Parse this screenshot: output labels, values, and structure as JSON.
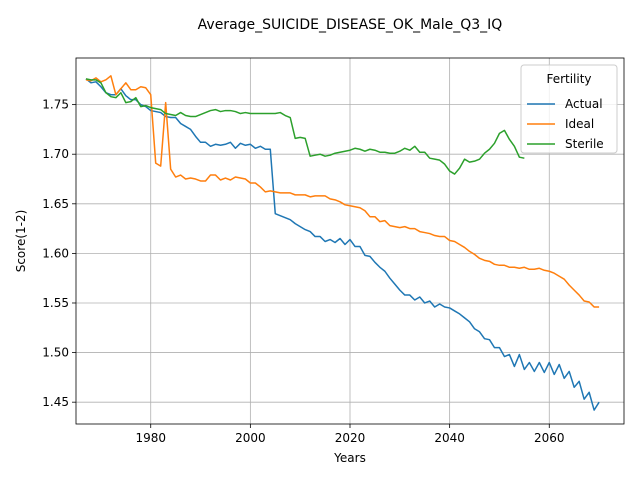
{
  "chart_data": {
    "type": "line",
    "title": "Average_SUICIDE_DISEASE_OK_Male_Q3_IQ",
    "xlabel": "Years",
    "ylabel": "Score(1-2)",
    "xlim": [
      1965,
      2075
    ],
    "ylim": [
      1.428,
      1.797
    ],
    "xticks": [
      1980,
      2000,
      2020,
      2040,
      2060
    ],
    "yticks": [
      1.45,
      1.5,
      1.55,
      1.6,
      1.65,
      1.7,
      1.75
    ],
    "grid": true,
    "legend": {
      "title": "Fertility",
      "placement": "top-right"
    },
    "series": [
      {
        "name": "Actual",
        "color": "#1f77b4",
        "x": [
          1967,
          1968,
          1969,
          1970,
          1971,
          1972,
          1973,
          1974,
          1975,
          1976,
          1977,
          1978,
          1979,
          1980,
          1981,
          1982,
          1983,
          1984,
          1985,
          1986,
          1987,
          1988,
          1989,
          1990,
          1991,
          1992,
          1993,
          1994,
          1995,
          1996,
          1997,
          1998,
          1999,
          2000,
          2001,
          2002,
          2003,
          2004,
          2005,
          2006,
          2007,
          2008,
          2009,
          2010,
          2011,
          2012,
          2013,
          2014,
          2015,
          2016,
          2017,
          2018,
          2019,
          2020,
          2021,
          2022,
          2023,
          2024,
          2025,
          2026,
          2027,
          2028,
          2029,
          2030,
          2031,
          2032,
          2033,
          2034,
          2035,
          2036,
          2037,
          2038,
          2039,
          2040,
          2041,
          2042,
          2043,
          2044,
          2045,
          2046,
          2047,
          2048,
          2049,
          2050,
          2051,
          2052,
          2053,
          2054,
          2055,
          2056,
          2057,
          2058,
          2059,
          2060,
          2061,
          2062,
          2063,
          2064,
          2065,
          2066,
          2067,
          2068,
          2069,
          2070
        ],
        "values": [
          1.776,
          1.772,
          1.773,
          1.768,
          1.762,
          1.76,
          1.76,
          1.766,
          1.759,
          1.755,
          1.755,
          1.75,
          1.748,
          1.744,
          1.743,
          1.742,
          1.738,
          1.737,
          1.737,
          1.731,
          1.728,
          1.725,
          1.718,
          1.712,
          1.712,
          1.708,
          1.71,
          1.709,
          1.71,
          1.712,
          1.706,
          1.711,
          1.709,
          1.71,
          1.706,
          1.708,
          1.705,
          1.705,
          1.64,
          1.638,
          1.636,
          1.634,
          1.63,
          1.627,
          1.624,
          1.622,
          1.617,
          1.617,
          1.612,
          1.614,
          1.611,
          1.615,
          1.609,
          1.614,
          1.607,
          1.607,
          1.598,
          1.597,
          1.591,
          1.586,
          1.582,
          1.575,
          1.569,
          1.563,
          1.558,
          1.558,
          1.553,
          1.556,
          1.55,
          1.552,
          1.546,
          1.549,
          1.546,
          1.545,
          1.542,
          1.539,
          1.535,
          1.531,
          1.524,
          1.521,
          1.514,
          1.513,
          1.505,
          1.505,
          1.496,
          1.498,
          1.486,
          1.498,
          1.483,
          1.49,
          1.481,
          1.49,
          1.48,
          1.49,
          1.478,
          1.488,
          1.474,
          1.481,
          1.465,
          1.471,
          1.453,
          1.46,
          1.442,
          1.45
        ]
      },
      {
        "name": "Ideal",
        "color": "#ff7f0e",
        "x": [
          1967,
          1968,
          1969,
          1970,
          1971,
          1972,
          1973,
          1974,
          1975,
          1976,
          1977,
          1978,
          1979,
          1980,
          1981,
          1982,
          1983,
          1984,
          1985,
          1986,
          1987,
          1988,
          1989,
          1990,
          1991,
          1992,
          1993,
          1994,
          1995,
          1996,
          1997,
          1998,
          1999,
          2000,
          2001,
          2002,
          2003,
          2004,
          2005,
          2006,
          2007,
          2008,
          2009,
          2010,
          2011,
          2012,
          2013,
          2014,
          2015,
          2016,
          2017,
          2018,
          2019,
          2020,
          2021,
          2022,
          2023,
          2024,
          2025,
          2026,
          2027,
          2028,
          2029,
          2030,
          2031,
          2032,
          2033,
          2034,
          2035,
          2036,
          2037,
          2038,
          2039,
          2040,
          2041,
          2042,
          2043,
          2044,
          2045,
          2046,
          2047,
          2048,
          2049,
          2050,
          2051,
          2052,
          2053,
          2054,
          2055,
          2056,
          2057,
          2058,
          2059,
          2060,
          2061,
          2062,
          2063,
          2064,
          2065,
          2066,
          2067,
          2068,
          2069,
          2070
        ],
        "values": [
          1.775,
          1.774,
          1.777,
          1.773,
          1.775,
          1.779,
          1.76,
          1.766,
          1.772,
          1.765,
          1.765,
          1.768,
          1.767,
          1.76,
          1.691,
          1.688,
          1.752,
          1.685,
          1.677,
          1.679,
          1.675,
          1.676,
          1.675,
          1.673,
          1.673,
          1.679,
          1.679,
          1.674,
          1.676,
          1.674,
          1.677,
          1.676,
          1.675,
          1.671,
          1.671,
          1.667,
          1.662,
          1.663,
          1.662,
          1.661,
          1.661,
          1.661,
          1.659,
          1.659,
          1.659,
          1.657,
          1.658,
          1.658,
          1.658,
          1.655,
          1.654,
          1.652,
          1.649,
          1.648,
          1.647,
          1.646,
          1.643,
          1.637,
          1.637,
          1.632,
          1.633,
          1.628,
          1.627,
          1.626,
          1.627,
          1.625,
          1.625,
          1.622,
          1.621,
          1.62,
          1.618,
          1.617,
          1.617,
          1.613,
          1.612,
          1.609,
          1.606,
          1.602,
          1.599,
          1.595,
          1.593,
          1.592,
          1.589,
          1.588,
          1.588,
          1.586,
          1.586,
          1.585,
          1.586,
          1.584,
          1.584,
          1.585,
          1.583,
          1.582,
          1.58,
          1.577,
          1.574,
          1.568,
          1.563,
          1.558,
          1.552,
          1.551,
          1.546,
          1.546
        ]
      },
      {
        "name": "Sterile",
        "color": "#2ca02c",
        "x": [
          1967,
          1968,
          1969,
          1970,
          1971,
          1972,
          1973,
          1974,
          1975,
          1976,
          1977,
          1978,
          1979,
          1980,
          1981,
          1982,
          1983,
          1984,
          1985,
          1986,
          1987,
          1988,
          1989,
          1990,
          1991,
          1992,
          1993,
          1994,
          1995,
          1996,
          1997,
          1998,
          1999,
          2000,
          2001,
          2002,
          2003,
          2004,
          2005,
          2006,
          2007,
          2008,
          2009,
          2010,
          2011,
          2012,
          2013,
          2014,
          2015,
          2016,
          2017,
          2018,
          2019,
          2020,
          2021,
          2022,
          2023,
          2024,
          2025,
          2026,
          2027,
          2028,
          2029,
          2030,
          2031,
          2032,
          2033,
          2034,
          2035,
          2036,
          2037,
          2038,
          2039,
          2040,
          2041,
          2042,
          2043,
          2044,
          2045,
          2046,
          2047,
          2048,
          2049,
          2050,
          2051,
          2052,
          2053,
          2054,
          2055
        ],
        "values": [
          1.776,
          1.775,
          1.775,
          1.772,
          1.762,
          1.758,
          1.757,
          1.762,
          1.752,
          1.753,
          1.757,
          1.748,
          1.749,
          1.747,
          1.746,
          1.745,
          1.741,
          1.74,
          1.739,
          1.742,
          1.739,
          1.738,
          1.738,
          1.74,
          1.742,
          1.744,
          1.745,
          1.743,
          1.744,
          1.744,
          1.743,
          1.741,
          1.742,
          1.741,
          1.741,
          1.741,
          1.741,
          1.741,
          1.741,
          1.742,
          1.739,
          1.737,
          1.716,
          1.717,
          1.716,
          1.698,
          1.699,
          1.7,
          1.698,
          1.699,
          1.701,
          1.702,
          1.703,
          1.704,
          1.706,
          1.705,
          1.703,
          1.705,
          1.704,
          1.702,
          1.702,
          1.701,
          1.701,
          1.703,
          1.706,
          1.704,
          1.708,
          1.702,
          1.702,
          1.696,
          1.695,
          1.694,
          1.69,
          1.683,
          1.68,
          1.686,
          1.695,
          1.692,
          1.693,
          1.695,
          1.701,
          1.705,
          1.711,
          1.721,
          1.724,
          1.715,
          1.708,
          1.697,
          1.696
        ]
      }
    ]
  }
}
